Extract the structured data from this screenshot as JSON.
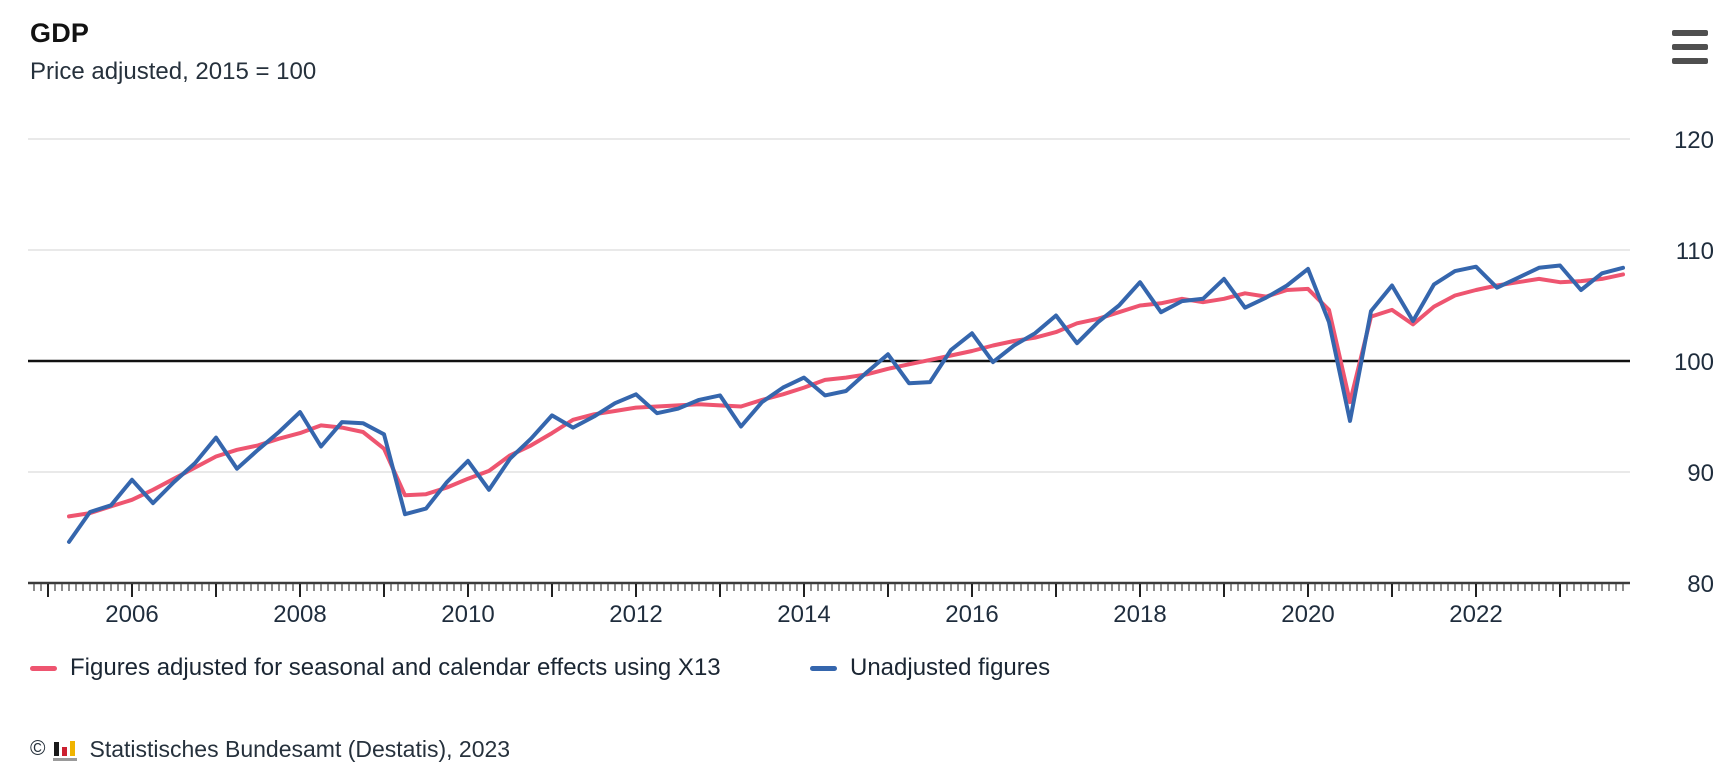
{
  "header": {
    "title": "GDP",
    "subtitle": "Price adjusted, 2015 = 100",
    "menu_icon": "hamburger-menu-icon"
  },
  "colors": {
    "adjusted_line": "#ee5570",
    "unadjusted_line": "#3566ad",
    "baseline_100": "#111111",
    "gridline": "#e9e9e9",
    "axis": "#3b3b3b",
    "text": "#1f2d3d"
  },
  "chart_data": {
    "type": "line",
    "title": "GDP",
    "subtitle": "Price adjusted, 2015 = 100",
    "frequency": "quarterly",
    "x_start": "2005 Q1",
    "x_end": "2023 Q3",
    "ylim": [
      80,
      120
    ],
    "y_ticks": [
      80,
      90,
      100,
      110,
      120
    ],
    "x_tick_years": [
      2006,
      2008,
      2010,
      2012,
      2014,
      2016,
      2018,
      2020,
      2022
    ],
    "baseline": 100,
    "grid": "horizontal",
    "minor_ticks": "monthly",
    "y_axis_side": "right",
    "legend_position": "bottom",
    "quarters": [
      "2005 Q1",
      "2005 Q2",
      "2005 Q3",
      "2005 Q4",
      "2006 Q1",
      "2006 Q2",
      "2006 Q3",
      "2006 Q4",
      "2007 Q1",
      "2007 Q2",
      "2007 Q3",
      "2007 Q4",
      "2008 Q1",
      "2008 Q2",
      "2008 Q3",
      "2008 Q4",
      "2009 Q1",
      "2009 Q2",
      "2009 Q3",
      "2009 Q4",
      "2010 Q1",
      "2010 Q2",
      "2010 Q3",
      "2010 Q4",
      "2011 Q1",
      "2011 Q2",
      "2011 Q3",
      "2011 Q4",
      "2012 Q1",
      "2012 Q2",
      "2012 Q3",
      "2012 Q4",
      "2013 Q1",
      "2013 Q2",
      "2013 Q3",
      "2013 Q4",
      "2014 Q1",
      "2014 Q2",
      "2014 Q3",
      "2014 Q4",
      "2015 Q1",
      "2015 Q2",
      "2015 Q3",
      "2015 Q4",
      "2016 Q1",
      "2016 Q2",
      "2016 Q3",
      "2016 Q4",
      "2017 Q1",
      "2017 Q2",
      "2017 Q3",
      "2017 Q4",
      "2018 Q1",
      "2018 Q2",
      "2018 Q3",
      "2018 Q4",
      "2019 Q1",
      "2019 Q2",
      "2019 Q3",
      "2019 Q4",
      "2020 Q1",
      "2020 Q2",
      "2020 Q3",
      "2020 Q4",
      "2021 Q1",
      "2021 Q2",
      "2021 Q3",
      "2021 Q4",
      "2022 Q1",
      "2022 Q2",
      "2022 Q3",
      "2022 Q4",
      "2023 Q1",
      "2023 Q2",
      "2023 Q3"
    ],
    "series": [
      {
        "name": "Figures adjusted for seasonal and calendar effects using X13",
        "color": "#ee5570",
        "values": [
          86.0,
          86.3,
          86.9,
          87.5,
          88.4,
          89.4,
          90.4,
          91.4,
          92.0,
          92.4,
          93.0,
          93.5,
          94.2,
          94.0,
          93.6,
          92.1,
          87.9,
          88.0,
          88.6,
          89.4,
          90.1,
          91.5,
          92.4,
          93.5,
          94.7,
          95.2,
          95.5,
          95.8,
          95.9,
          96.0,
          96.1,
          96.0,
          95.9,
          96.5,
          97.0,
          97.6,
          98.3,
          98.5,
          98.8,
          99.3,
          99.7,
          100.1,
          100.5,
          100.9,
          101.4,
          101.8,
          102.1,
          102.6,
          103.4,
          103.8,
          104.4,
          105.0,
          105.2,
          105.6,
          105.3,
          105.6,
          106.1,
          105.8,
          106.4,
          106.5,
          104.6,
          96.3,
          104.0,
          104.6,
          103.3,
          104.9,
          105.9,
          106.4,
          106.8,
          107.1,
          107.4,
          107.1,
          107.2,
          107.4,
          107.8
        ]
      },
      {
        "name": "Unadjusted figures",
        "color": "#3566ad",
        "values": [
          83.7,
          86.4,
          87.0,
          89.3,
          87.2,
          89.1,
          90.8,
          93.1,
          90.3,
          92.0,
          93.6,
          95.4,
          92.3,
          94.5,
          94.4,
          93.4,
          86.2,
          86.7,
          89.1,
          91.0,
          88.4,
          91.2,
          93.0,
          95.1,
          94.0,
          95.0,
          96.2,
          97.0,
          95.3,
          95.7,
          96.5,
          96.9,
          94.1,
          96.3,
          97.6,
          98.5,
          96.9,
          97.3,
          99.0,
          100.6,
          98.0,
          98.1,
          101.0,
          102.5,
          99.9,
          101.4,
          102.5,
          104.1,
          101.6,
          103.5,
          105.0,
          107.1,
          104.4,
          105.4,
          105.6,
          107.4,
          104.8,
          105.7,
          106.8,
          108.3,
          103.5,
          94.6,
          104.5,
          106.8,
          103.6,
          106.9,
          108.1,
          108.5,
          106.6,
          107.5,
          108.4,
          108.6,
          106.4,
          107.9,
          108.4
        ]
      }
    ]
  },
  "legend": {
    "items": [
      {
        "label": "Figures adjusted for seasonal and calendar effects using X13",
        "color": "#ee5570"
      },
      {
        "label": "Unadjusted figures",
        "color": "#3566ad"
      }
    ]
  },
  "footer": {
    "copyright_symbol": "©",
    "logo": "destatis-mini-bar-chart-logo",
    "source": "Statistisches Bundesamt (Destatis), 2023"
  }
}
